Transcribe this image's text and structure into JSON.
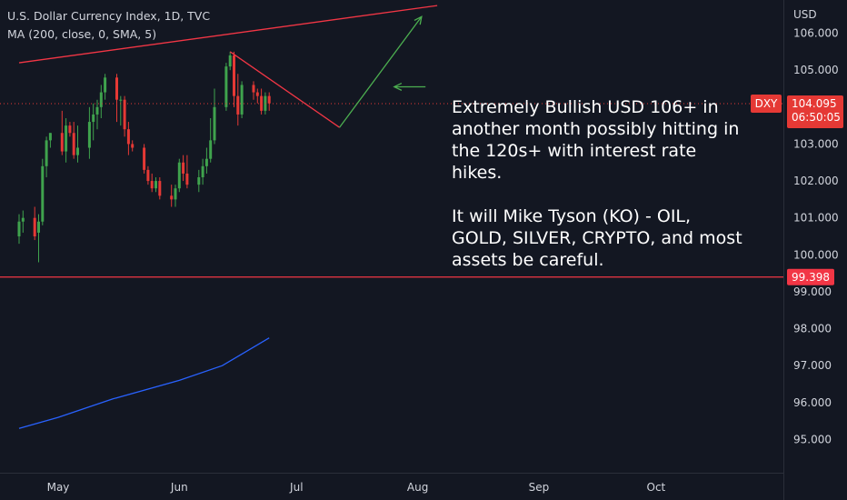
{
  "header": {
    "title": "U.S. Dollar Currency Index, 1D, TVC",
    "indicator": "MA (200, close, 0, SMA, 5)"
  },
  "annotation": {
    "line1": "Extremely Bullish USD 106+ in another month possibly hitting in the 120s+ with interest rate hikes.",
    "line2": "It will Mike Tyson (KO) - OIL, GOLD, SILVER, CRYPTO, and most assets be careful."
  },
  "price_scale": {
    "currency": "USD",
    "symbol": "DXY",
    "last_price": "104.095",
    "countdown": "06:50:05",
    "support_price": "99.398"
  },
  "colors": {
    "background": "#131722",
    "up": "#26a69a",
    "up_body": "#3fa34d",
    "down": "#e53935",
    "ma": "#2962ff",
    "resistance": "#f23645",
    "support": "#f23645",
    "projection_down": "#f23645",
    "projection_up": "#4caf50",
    "axis_text": "#d1d4dc"
  },
  "chart_data": {
    "type": "candlestick",
    "title": "U.S. Dollar Currency Index, 1D, TVC",
    "xlabel": "",
    "ylabel": "USD",
    "ylim": [
      94.1,
      106.9
    ],
    "x_ticks": [
      {
        "label": "May",
        "date": "2022-05-01"
      },
      {
        "label": "Jun",
        "date": "2022-06-01"
      },
      {
        "label": "Jul",
        "date": "2022-07-01"
      },
      {
        "label": "Aug",
        "date": "2022-08-01"
      },
      {
        "label": "Sep",
        "date": "2022-09-01"
      },
      {
        "label": "Oct",
        "date": "2022-10-01"
      }
    ],
    "y_ticks": [
      95,
      96,
      97,
      98,
      99,
      100,
      101,
      102,
      103,
      104,
      105,
      106
    ],
    "grid": false,
    "candles": [
      {
        "date": "2022-04-21",
        "o": 100.5,
        "h": 101.1,
        "l": 100.3,
        "c": 100.9
      },
      {
        "date": "2022-04-22",
        "o": 100.9,
        "h": 101.2,
        "l": 100.6,
        "c": 101.0
      },
      {
        "date": "2022-04-25",
        "o": 101.0,
        "h": 101.3,
        "l": 100.4,
        "c": 100.5
      },
      {
        "date": "2022-04-26",
        "o": 100.6,
        "h": 101.1,
        "l": 99.8,
        "c": 100.9
      },
      {
        "date": "2022-04-27",
        "o": 100.9,
        "h": 102.6,
        "l": 100.8,
        "c": 102.4
      },
      {
        "date": "2022-04-28",
        "o": 102.4,
        "h": 103.2,
        "l": 102.1,
        "c": 103.1
      },
      {
        "date": "2022-04-29",
        "o": 103.1,
        "h": 103.3,
        "l": 102.9,
        "c": 103.3
      },
      {
        "date": "2022-05-02",
        "o": 103.3,
        "h": 103.9,
        "l": 102.7,
        "c": 102.8
      },
      {
        "date": "2022-05-03",
        "o": 102.8,
        "h": 103.7,
        "l": 102.5,
        "c": 103.5
      },
      {
        "date": "2022-05-04",
        "o": 103.5,
        "h": 103.6,
        "l": 103.2,
        "c": 103.3
      },
      {
        "date": "2022-05-05",
        "o": 103.3,
        "h": 103.6,
        "l": 102.6,
        "c": 102.7
      },
      {
        "date": "2022-05-06",
        "o": 102.7,
        "h": 103.5,
        "l": 102.5,
        "c": 102.9
      },
      {
        "date": "2022-05-09",
        "o": 102.9,
        "h": 104.0,
        "l": 102.6,
        "c": 103.6
      },
      {
        "date": "2022-05-10",
        "o": 103.6,
        "h": 104.1,
        "l": 103.1,
        "c": 103.8
      },
      {
        "date": "2022-05-11",
        "o": 103.8,
        "h": 104.2,
        "l": 103.4,
        "c": 104.0
      },
      {
        "date": "2022-05-12",
        "o": 104.0,
        "h": 104.6,
        "l": 103.7,
        "c": 104.4
      },
      {
        "date": "2022-05-13",
        "o": 104.4,
        "h": 104.9,
        "l": 104.2,
        "c": 104.8
      },
      {
        "date": "2022-05-16",
        "o": 104.8,
        "h": 104.9,
        "l": 103.6,
        "c": 104.2
      },
      {
        "date": "2022-05-17",
        "o": 104.2,
        "h": 104.3,
        "l": 103.5,
        "c": 104.2
      },
      {
        "date": "2022-05-18",
        "o": 104.2,
        "h": 104.3,
        "l": 103.2,
        "c": 103.4
      },
      {
        "date": "2022-05-19",
        "o": 103.4,
        "h": 103.6,
        "l": 102.7,
        "c": 103.0
      },
      {
        "date": "2022-05-20",
        "o": 103.0,
        "h": 103.1,
        "l": 102.8,
        "c": 102.9
      },
      {
        "date": "2022-05-23",
        "o": 102.9,
        "h": 103.0,
        "l": 102.2,
        "c": 102.3
      },
      {
        "date": "2022-05-24",
        "o": 102.3,
        "h": 102.4,
        "l": 101.9,
        "c": 102.0
      },
      {
        "date": "2022-05-25",
        "o": 102.0,
        "h": 102.2,
        "l": 101.7,
        "c": 101.8
      },
      {
        "date": "2022-05-26",
        "o": 101.8,
        "h": 102.1,
        "l": 101.7,
        "c": 102.0
      },
      {
        "date": "2022-05-27",
        "o": 102.0,
        "h": 102.1,
        "l": 101.5,
        "c": 101.6
      },
      {
        "date": "2022-05-30",
        "o": 101.6,
        "h": 101.9,
        "l": 101.3,
        "c": 101.5
      },
      {
        "date": "2022-05-31",
        "o": 101.5,
        "h": 101.9,
        "l": 101.3,
        "c": 101.8
      },
      {
        "date": "2022-06-01",
        "o": 101.8,
        "h": 102.6,
        "l": 101.7,
        "c": 102.5
      },
      {
        "date": "2022-06-02",
        "o": 102.5,
        "h": 102.7,
        "l": 102.0,
        "c": 102.2
      },
      {
        "date": "2022-06-03",
        "o": 102.2,
        "h": 102.7,
        "l": 101.8,
        "c": 101.9
      },
      {
        "date": "2022-06-06",
        "o": 101.9,
        "h": 102.3,
        "l": 101.7,
        "c": 102.1
      },
      {
        "date": "2022-06-07",
        "o": 102.1,
        "h": 102.6,
        "l": 101.9,
        "c": 102.4
      },
      {
        "date": "2022-06-08",
        "o": 102.4,
        "h": 102.9,
        "l": 102.2,
        "c": 102.6
      },
      {
        "date": "2022-06-09",
        "o": 102.6,
        "h": 103.7,
        "l": 102.5,
        "c": 103.1
      },
      {
        "date": "2022-06-10",
        "o": 103.1,
        "h": 104.5,
        "l": 103.0,
        "c": 104.0
      },
      {
        "date": "2022-06-13",
        "o": 104.0,
        "h": 105.2,
        "l": 103.9,
        "c": 105.1
      },
      {
        "date": "2022-06-14",
        "o": 105.1,
        "h": 105.5,
        "l": 105.0,
        "c": 105.4
      },
      {
        "date": "2022-06-15",
        "o": 105.4,
        "h": 105.5,
        "l": 104.0,
        "c": 104.3
      },
      {
        "date": "2022-06-16",
        "o": 104.3,
        "h": 104.9,
        "l": 103.5,
        "c": 103.8
      },
      {
        "date": "2022-06-17",
        "o": 103.8,
        "h": 104.7,
        "l": 103.7,
        "c": 104.6
      },
      {
        "date": "2022-06-20",
        "o": 104.6,
        "h": 104.7,
        "l": 104.2,
        "c": 104.4
      },
      {
        "date": "2022-06-21",
        "o": 104.4,
        "h": 104.5,
        "l": 104.1,
        "c": 104.3
      },
      {
        "date": "2022-06-22",
        "o": 104.3,
        "h": 104.5,
        "l": 103.8,
        "c": 103.9
      },
      {
        "date": "2022-06-23",
        "o": 103.9,
        "h": 104.4,
        "l": 103.8,
        "c": 104.3
      },
      {
        "date": "2022-06-24",
        "o": 104.3,
        "h": 104.4,
        "l": 103.9,
        "c": 104.1
      }
    ],
    "ma200": [
      {
        "date": "2022-04-21",
        "value": 95.3
      },
      {
        "date": "2022-05-01",
        "value": 95.6
      },
      {
        "date": "2022-05-15",
        "value": 96.1
      },
      {
        "date": "2022-06-01",
        "value": 96.6
      },
      {
        "date": "2022-06-12",
        "value": 97.0
      },
      {
        "date": "2022-06-24",
        "value": 97.75
      }
    ],
    "levels": {
      "last": 104.095,
      "support": 99.398
    },
    "drawings": {
      "resistance_line": [
        {
          "date": "2022-04-21",
          "value": 105.2
        },
        {
          "date": "2022-08-06",
          "value": 106.75
        }
      ],
      "projection_down": [
        {
          "date": "2022-06-14",
          "value": 105.5
        },
        {
          "date": "2022-07-12",
          "value": 103.45
        }
      ],
      "projection_up": [
        {
          "date": "2022-07-12",
          "value": 103.45
        },
        {
          "date": "2022-08-02",
          "value": 106.45
        }
      ],
      "pointer_arrow": [
        {
          "date": "2022-08-03",
          "value": 104.55
        },
        {
          "date": "2022-07-26",
          "value": 104.55
        }
      ]
    }
  }
}
